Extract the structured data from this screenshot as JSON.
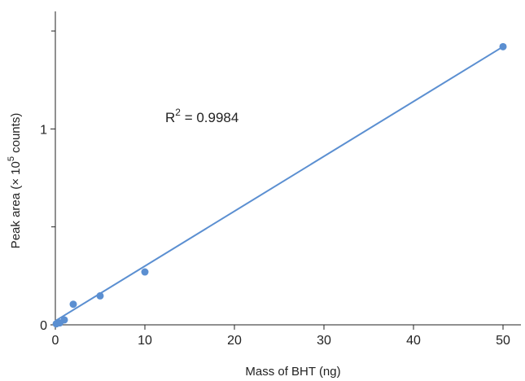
{
  "chart_data": {
    "type": "scatter",
    "title": "",
    "xlabel": "Mass of BHT (ng)",
    "ylabel": {
      "prefix": "Peak area (× 10",
      "superscript": "5",
      "suffix": " counts)"
    },
    "xlim": [
      0,
      52
    ],
    "ylim": [
      0,
      1.6
    ],
    "x_ticks": [
      0,
      10,
      20,
      30,
      40,
      50
    ],
    "y_ticks": [
      0,
      1
    ],
    "y_minor_ticks": [
      0.5,
      1.5
    ],
    "grid": false,
    "legend": "none",
    "series": [
      {
        "points": [
          {
            "x": 0.1,
            "y": 0.005
          },
          {
            "x": 0.5,
            "y": 0.01
          },
          {
            "x": 1,
            "y": 0.025
          },
          {
            "x": 2,
            "y": 0.105
          },
          {
            "x": 5,
            "y": 0.148
          },
          {
            "x": 10,
            "y": 0.27
          },
          {
            "x": 50,
            "y": 1.42
          }
        ],
        "color": "#5b8fd1"
      }
    ],
    "fit_line": {
      "x": [
        0,
        50
      ],
      "y": [
        0.02,
        1.42
      ],
      "color": "#5b8fd1"
    },
    "annotation": {
      "base": "R",
      "superscript": "2",
      "text": " = 0.9984"
    }
  }
}
